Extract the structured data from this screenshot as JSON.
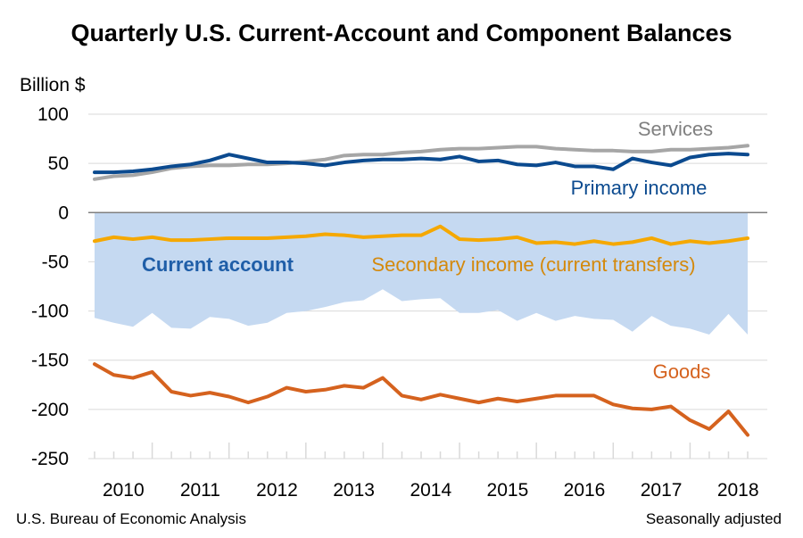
{
  "chart_data": {
    "type": "line",
    "title": "Quarterly U.S. Current-Account and Component Balances",
    "ylabel": "Billion $",
    "ylim": [
      -250,
      100
    ],
    "yticks": [
      100,
      50,
      0,
      -50,
      -100,
      -150,
      -200,
      -250
    ],
    "xtick_labels": [
      "2010",
      "2011",
      "2012",
      "2013",
      "2014",
      "2015",
      "2016",
      "2017",
      "2018"
    ],
    "grid": "horizontal",
    "x": [
      "2010Q1",
      "2010Q2",
      "2010Q3",
      "2010Q4",
      "2011Q1",
      "2011Q2",
      "2011Q3",
      "2011Q4",
      "2012Q1",
      "2012Q2",
      "2012Q3",
      "2012Q4",
      "2013Q1",
      "2013Q2",
      "2013Q3",
      "2013Q4",
      "2014Q1",
      "2014Q2",
      "2014Q3",
      "2014Q4",
      "2015Q1",
      "2015Q2",
      "2015Q3",
      "2015Q4",
      "2016Q1",
      "2016Q2",
      "2016Q3",
      "2016Q4",
      "2017Q1",
      "2017Q2",
      "2017Q3",
      "2017Q4",
      "2018Q1",
      "2018Q2",
      "2018Q3"
    ],
    "series": [
      {
        "name": "Services",
        "color": "#a6a6a6",
        "label_color": "#808080",
        "values": [
          34,
          37,
          38,
          41,
          45,
          47,
          48,
          48,
          49,
          49,
          50,
          52,
          54,
          58,
          59,
          59,
          61,
          62,
          64,
          65,
          65,
          66,
          67,
          67,
          65,
          64,
          63,
          63,
          62,
          62,
          64,
          64,
          65,
          66,
          68
        ]
      },
      {
        "name": "Primary income",
        "color": "#0b4a8f",
        "label_color": "#0b4a8f",
        "values": [
          41,
          41,
          42,
          44,
          47,
          49,
          53,
          59,
          55,
          51,
          51,
          50,
          48,
          51,
          53,
          54,
          54,
          55,
          54,
          57,
          52,
          53,
          49,
          48,
          51,
          47,
          47,
          44,
          55,
          51,
          48,
          56,
          59,
          60,
          59
        ]
      },
      {
        "name": "Secondary income (current transfers)",
        "color": "#f5a800",
        "label_color": "#d4890c",
        "values": [
          -29,
          -25,
          -27,
          -25,
          -28,
          -28,
          -27,
          -26,
          -26,
          -26,
          -25,
          -24,
          -22,
          -23,
          -25,
          -24,
          -23,
          -23,
          -14,
          -27,
          -28,
          -27,
          -25,
          -31,
          -30,
          -32,
          -29,
          -32,
          -30,
          -26,
          -32,
          -29,
          -31,
          -29,
          -26
        ]
      },
      {
        "name": "Goods",
        "color": "#d5621e",
        "label_color": "#d5621e",
        "values": [
          -154,
          -165,
          -168,
          -162,
          -182,
          -186,
          -183,
          -187,
          -193,
          -187,
          -178,
          -182,
          -180,
          -176,
          -178,
          -168,
          -186,
          -190,
          -185,
          -189,
          -193,
          -189,
          -192,
          -189,
          -186,
          -186,
          -186,
          -195,
          -199,
          -200,
          -197,
          -211,
          -220,
          -202,
          -226
        ]
      },
      {
        "name": "Current account",
        "color": "#c5d9f1",
        "label_color": "#1f5ea8",
        "values": [
          -107,
          -112,
          -116,
          -102,
          -117,
          -118,
          -106,
          -108,
          -115,
          -112,
          -102,
          -100,
          -96,
          -91,
          -89,
          -78,
          -90,
          -88,
          -87,
          -102,
          -102,
          -99,
          -110,
          -102,
          -110,
          -105,
          -108,
          -109,
          -121,
          -105,
          -115,
          -118,
          -124,
          -103,
          -124
        ]
      }
    ]
  },
  "labels": {
    "services": "Services",
    "primary": "Primary income",
    "current": "Current account",
    "secondary": "Secondary income (current transfers)",
    "goods": "Goods"
  },
  "footer": {
    "source": "U.S. Bureau of Economic Analysis",
    "note": "Seasonally adjusted"
  }
}
